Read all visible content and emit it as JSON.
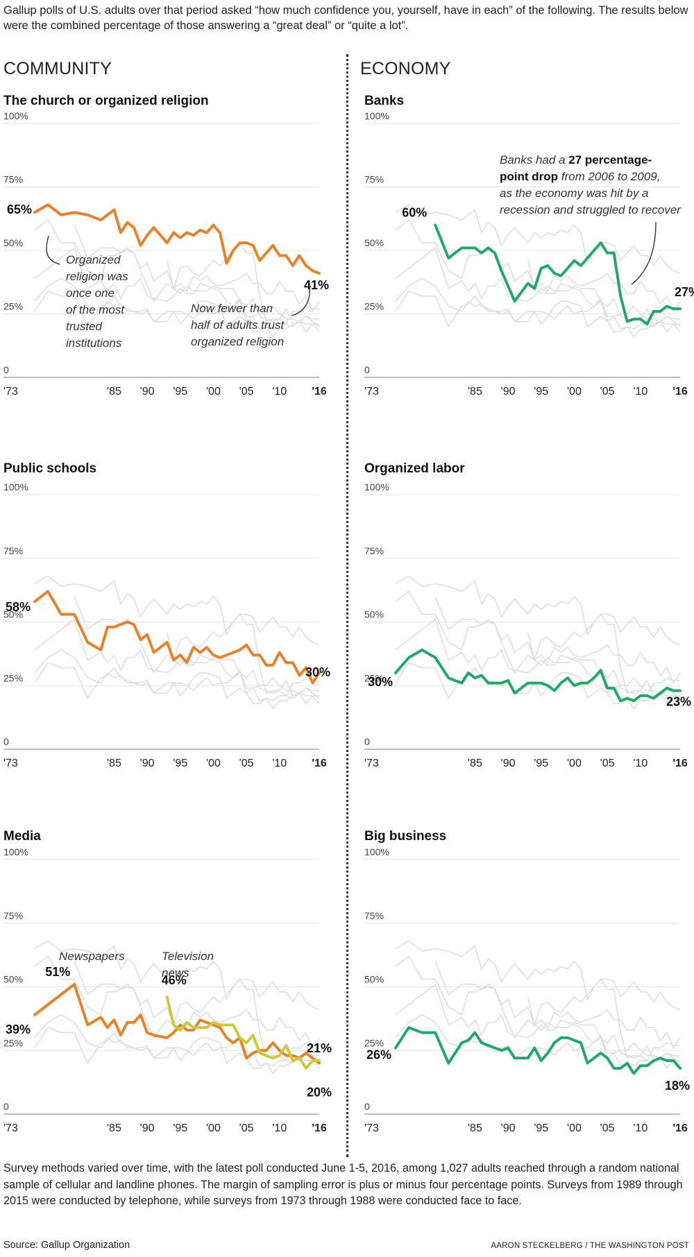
{
  "intro": "Gallup polls of U.S. adults over that period asked “how much confidence you, yourself, have in each” of the following. The results below were the combined percentage of those answering a “great deal” or “quite a lot”.",
  "sections": {
    "left": "COMMUNITY",
    "right": "ECONOMY"
  },
  "footnote": "Survey methods varied over time, with the latest poll conducted June 1-5, 2016, among 1,027 adults reached through a random national sample of cellular and landline phones. The margin of sampling error is plus or minus four percentage points. Surveys from 1989 through 2015 were conducted by telephone, while surveys from 1973 through 1988 were conducted face to face.",
  "source": "Source: Gallup Organization",
  "credit": "AARON STECKELBERG / THE WASHINGTON POST",
  "colors": {
    "orange": "#e8822a",
    "green": "#22a86b",
    "yellow": "#c9c93c",
    "grid": "#e6e6e6",
    "background_line": "#dedede"
  },
  "chart_data": [
    {
      "type": "line",
      "title": "The church or organized religion",
      "ylim": [
        0,
        100
      ],
      "yticks": [
        "100%",
        "75%",
        "50%",
        "25%",
        "0"
      ],
      "xticks": [
        "'73",
        "'85",
        "'90",
        "'95",
        "'00",
        "'05",
        "'10",
        "'16"
      ],
      "series": [
        {
          "color": "orange",
          "x": [
            1973,
            1975,
            1977,
            1979,
            1981,
            1983,
            1984,
            1985,
            1986,
            1987,
            1988,
            1989,
            1990,
            1991,
            1993,
            1994,
            1995,
            1996,
            1997,
            1998,
            1999,
            2000,
            2001,
            2002,
            2003,
            2004,
            2005,
            2006,
            2007,
            2008,
            2009,
            2010,
            2011,
            2012,
            2013,
            2014,
            2015,
            2016
          ],
          "y": [
            65,
            68,
            64,
            65,
            64,
            62,
            64,
            66,
            57,
            61,
            59,
            52,
            56,
            59,
            53,
            57,
            55,
            57,
            56,
            58,
            57,
            60,
            57,
            45,
            50,
            53,
            53,
            52,
            46,
            49,
            52,
            48,
            48,
            44,
            48,
            44,
            42,
            41
          ]
        }
      ],
      "end_labels": [
        {
          "text": "65%",
          "x": 1973,
          "y": 65
        },
        {
          "text": "41%",
          "x": 2016,
          "y": 41
        }
      ],
      "annotations": [
        {
          "lines": [
            "Organized",
            "religion was",
            "once one",
            "of the most",
            "trusted",
            "institutions"
          ]
        },
        {
          "lines": [
            "Now fewer than",
            "half of adults trust",
            "organized religion"
          ]
        }
      ]
    },
    {
      "type": "line",
      "title": "Banks",
      "ylim": [
        0,
        100
      ],
      "yticks": [
        "100%",
        "75%",
        "50%",
        "25%",
        "0"
      ],
      "xticks": [
        "'73",
        "'85",
        "'90",
        "'95",
        "'00",
        "'05",
        "'10",
        "'16"
      ],
      "series": [
        {
          "color": "green",
          "x": [
            1979,
            1981,
            1983,
            1984,
            1985,
            1986,
            1987,
            1988,
            1989,
            1990,
            1991,
            1993,
            1994,
            1995,
            1996,
            1997,
            1998,
            1999,
            2000,
            2001,
            2002,
            2003,
            2004,
            2005,
            2006,
            2007,
            2008,
            2009,
            2010,
            2011,
            2012,
            2013,
            2014,
            2015,
            2016
          ],
          "y": [
            60,
            47,
            51,
            51,
            51,
            49,
            51,
            49,
            42,
            36,
            30,
            37,
            35,
            43,
            44,
            41,
            40,
            43,
            46,
            44,
            47,
            50,
            53,
            49,
            49,
            32,
            22,
            23,
            23,
            21,
            26,
            26,
            28,
            27,
            27
          ]
        }
      ],
      "end_labels": [
        {
          "text": "60%",
          "x": 1979,
          "y": 60
        },
        {
          "text": "27%",
          "x": 2016,
          "y": 27
        }
      ],
      "annotations": [
        {
          "lines": [
            "Banks had a ",
            "27 percentage-",
            "point drop",
            " from 2006 to 2009,",
            "as the economy was hit by a",
            "recession and struggled to recover"
          ]
        }
      ]
    },
    {
      "type": "line",
      "title": "Public schools",
      "ylim": [
        0,
        100
      ],
      "yticks": [
        "100%",
        "75%",
        "50%",
        "25%",
        "0"
      ],
      "xticks": [
        "'73",
        "'85",
        "'90",
        "'95",
        "'00",
        "'05",
        "'10",
        "'16"
      ],
      "series": [
        {
          "color": "orange",
          "x": [
            1973,
            1975,
            1977,
            1979,
            1981,
            1983,
            1984,
            1985,
            1986,
            1987,
            1988,
            1989,
            1990,
            1991,
            1993,
            1994,
            1995,
            1996,
            1997,
            1998,
            1999,
            2000,
            2001,
            2002,
            2003,
            2004,
            2005,
            2006,
            2007,
            2008,
            2009,
            2010,
            2011,
            2012,
            2013,
            2014,
            2015,
            2016
          ],
          "y": [
            58,
            62,
            53,
            53,
            42,
            39,
            48,
            48,
            49,
            50,
            49,
            43,
            45,
            38,
            42,
            35,
            37,
            34,
            40,
            38,
            40,
            37,
            36,
            37,
            38,
            39,
            41,
            37,
            37,
            33,
            33,
            38,
            34,
            34,
            29,
            32,
            26,
            30
          ]
        }
      ],
      "end_labels": [
        {
          "text": "58%",
          "x": 1973,
          "y": 58
        },
        {
          "text": "30%",
          "x": 2016,
          "y": 30
        }
      ],
      "annotations": []
    },
    {
      "type": "line",
      "title": "Organized labor",
      "ylim": [
        0,
        100
      ],
      "yticks": [
        "100%",
        "75%",
        "50%",
        "25%",
        "0"
      ],
      "xticks": [
        "'73",
        "'85",
        "'90",
        "'95",
        "'00",
        "'05",
        "'10",
        "'16"
      ],
      "series": [
        {
          "color": "green",
          "x": [
            1973,
            1975,
            1977,
            1979,
            1981,
            1983,
            1984,
            1985,
            1986,
            1987,
            1988,
            1989,
            1990,
            1991,
            1993,
            1994,
            1995,
            1996,
            1997,
            1998,
            1999,
            2000,
            2001,
            2002,
            2003,
            2004,
            2005,
            2006,
            2007,
            2008,
            2009,
            2010,
            2011,
            2012,
            2013,
            2014,
            2015,
            2016
          ],
          "y": [
            30,
            36,
            39,
            36,
            28,
            26,
            30,
            28,
            29,
            26,
            26,
            26,
            27,
            22,
            26,
            26,
            26,
            25,
            23,
            26,
            28,
            25,
            26,
            26,
            28,
            31,
            24,
            24,
            19,
            20,
            19,
            21,
            21,
            20,
            22,
            24,
            23,
            23
          ]
        }
      ],
      "end_labels": [
        {
          "text": "30%",
          "x": 1973,
          "y": 30
        },
        {
          "text": "23%",
          "x": 2016,
          "y": 23
        }
      ],
      "annotations": []
    },
    {
      "type": "line",
      "title": "Media",
      "ylim": [
        0,
        100
      ],
      "yticks": [
        "100%",
        "75%",
        "50%",
        "25%",
        "0"
      ],
      "xticks": [
        "'73",
        "'85",
        "'90",
        "'95",
        "'00",
        "'05",
        "'10",
        "'16"
      ],
      "series": [
        {
          "color": "orange",
          "x": [
            1973,
            1979,
            1981,
            1983,
            1984,
            1985,
            1986,
            1987,
            1988,
            1989,
            1990,
            1991,
            1993,
            1994,
            1995,
            1996,
            1997,
            1998,
            1999,
            2000,
            2001,
            2002,
            2003,
            2004,
            2005,
            2006,
            2007,
            2008,
            2009,
            2010,
            2011,
            2012,
            2013,
            2014,
            2015,
            2016
          ],
          "y": [
            39,
            51,
            35,
            38,
            34,
            37,
            31,
            36,
            36,
            39,
            32,
            31,
            30,
            32,
            35,
            33,
            33,
            37,
            36,
            35,
            34,
            30,
            28,
            30,
            22,
            24,
            25,
            25,
            28,
            25,
            23,
            23,
            22,
            24,
            22,
            20
          ]
        },
        {
          "color": "yellow",
          "x": [
            1993,
            1994,
            1995,
            1996,
            1997,
            1998,
            1999,
            2000,
            2001,
            2002,
            2003,
            2004,
            2005,
            2006,
            2007,
            2008,
            2009,
            2010,
            2011,
            2012,
            2013,
            2014,
            2015,
            2016
          ],
          "y": [
            46,
            35,
            33,
            36,
            34,
            34,
            34,
            36,
            35,
            35,
            35,
            30,
            28,
            31,
            24,
            23,
            22,
            23,
            27,
            21,
            22,
            18,
            21,
            21
          ]
        }
      ],
      "end_labels": [
        {
          "text": "39%",
          "x": 1973,
          "y": 39
        },
        {
          "text": "51%",
          "x": 1979,
          "y": 51
        },
        {
          "text": "46%",
          "x": 1993,
          "y": 46
        },
        {
          "text": "21%",
          "x": 2016,
          "y": 21
        },
        {
          "text": "20%",
          "x": 2016,
          "y": 20
        }
      ],
      "annotations": [
        {
          "lines": [
            "Newspapers"
          ]
        },
        {
          "lines": [
            "Television",
            "news"
          ]
        }
      ]
    },
    {
      "type": "line",
      "title": "Big business",
      "ylim": [
        0,
        100
      ],
      "yticks": [
        "100%",
        "75%",
        "50%",
        "25%",
        "0"
      ],
      "xticks": [
        "'73",
        "'85",
        "'90",
        "'95",
        "'00",
        "'05",
        "'10",
        "'16"
      ],
      "series": [
        {
          "color": "green",
          "x": [
            1973,
            1975,
            1977,
            1979,
            1981,
            1983,
            1984,
            1985,
            1986,
            1987,
            1988,
            1989,
            1990,
            1991,
            1993,
            1994,
            1995,
            1996,
            1997,
            1998,
            1999,
            2000,
            2001,
            2002,
            2003,
            2004,
            2005,
            2006,
            2007,
            2008,
            2009,
            2010,
            2011,
            2012,
            2013,
            2014,
            2015,
            2016
          ],
          "y": [
            26,
            34,
            32,
            32,
            20,
            28,
            29,
            32,
            28,
            27,
            26,
            25,
            26,
            22,
            22,
            26,
            21,
            24,
            28,
            30,
            30,
            29,
            28,
            20,
            22,
            24,
            22,
            18,
            18,
            20,
            16,
            19,
            19,
            21,
            22,
            21,
            21,
            18
          ]
        }
      ],
      "end_labels": [
        {
          "text": "26%",
          "x": 1973,
          "y": 26
        },
        {
          "text": "18%",
          "x": 2016,
          "y": 18
        }
      ],
      "annotations": []
    }
  ]
}
